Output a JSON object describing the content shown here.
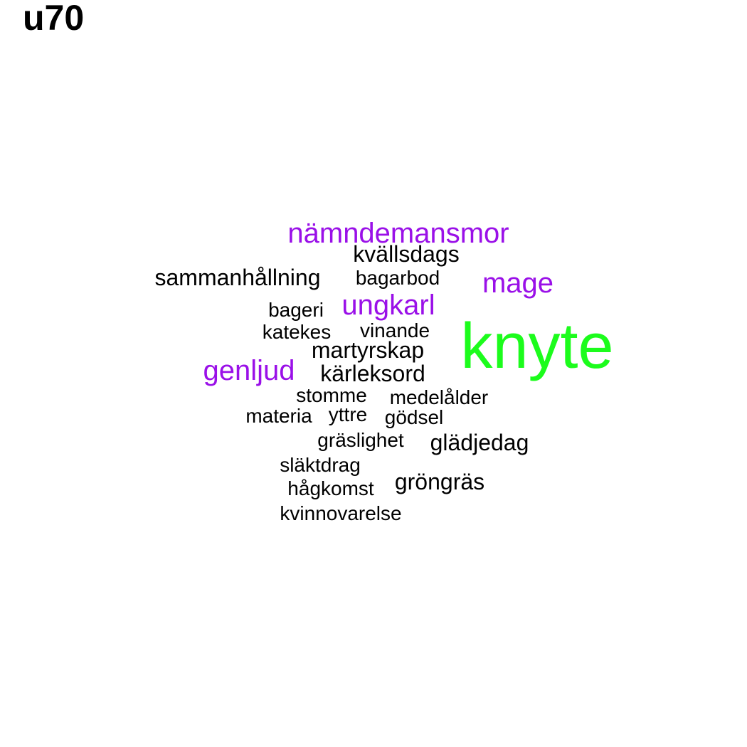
{
  "title": "u70",
  "colors": {
    "highlight_green": "#1cfc1c",
    "highlight_purple": "#9a10e8",
    "default_text": "#000000"
  },
  "words": [
    {
      "text": "knyte",
      "color": "highlight_green"
    },
    {
      "text": "nämndemansmor",
      "color": "highlight_purple"
    },
    {
      "text": "mage",
      "color": "highlight_purple"
    },
    {
      "text": "ungkarl",
      "color": "highlight_purple"
    },
    {
      "text": "genljud",
      "color": "highlight_purple"
    },
    {
      "text": "kvällsdags",
      "color": "default_text"
    },
    {
      "text": "sammanhållning",
      "color": "default_text"
    },
    {
      "text": "bagarbod",
      "color": "default_text"
    },
    {
      "text": "bageri",
      "color": "default_text"
    },
    {
      "text": "katekes",
      "color": "default_text"
    },
    {
      "text": "vinande",
      "color": "default_text"
    },
    {
      "text": "martyrskap",
      "color": "default_text"
    },
    {
      "text": "kärleksord",
      "color": "default_text"
    },
    {
      "text": "stomme",
      "color": "default_text"
    },
    {
      "text": "medelålder",
      "color": "default_text"
    },
    {
      "text": "materia",
      "color": "default_text"
    },
    {
      "text": "yttre",
      "color": "default_text"
    },
    {
      "text": "gödsel",
      "color": "default_text"
    },
    {
      "text": "gräslighet",
      "color": "default_text"
    },
    {
      "text": "glädjedag",
      "color": "default_text"
    },
    {
      "text": "släktdrag",
      "color": "default_text"
    },
    {
      "text": "gröngräs",
      "color": "default_text"
    },
    {
      "text": "hågkomst",
      "color": "default_text"
    },
    {
      "text": "kvinnovarelse",
      "color": "default_text"
    }
  ]
}
